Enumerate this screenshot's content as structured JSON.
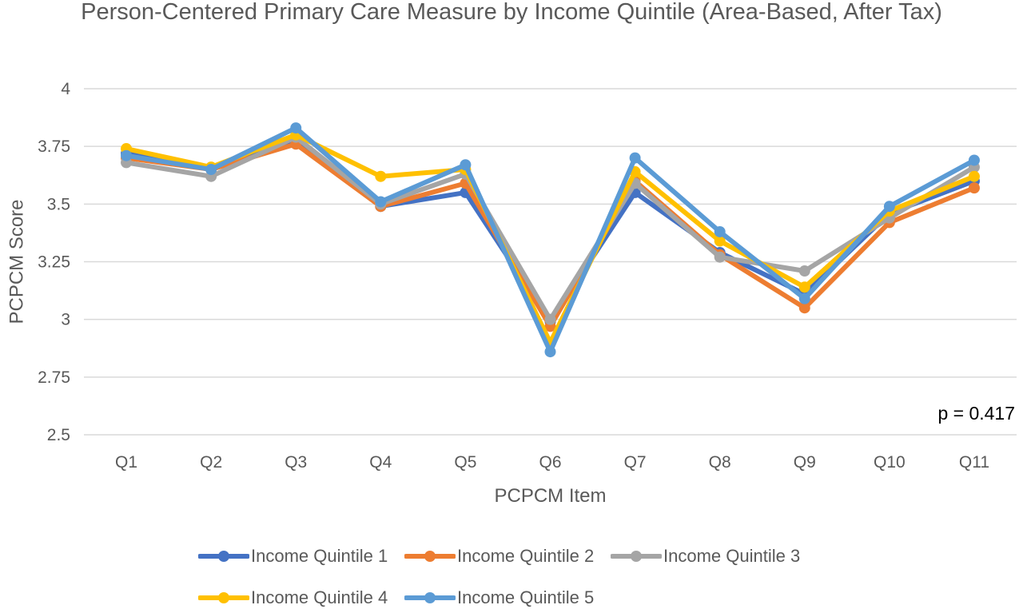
{
  "chart_data": {
    "type": "line",
    "title": "Person-Centered Primary Care Measure by Income Quintile (Area-Based, After Tax)",
    "xlabel": "PCPCM Item",
    "ylabel": "PCPCM Score",
    "categories": [
      "Q1",
      "Q2",
      "Q3",
      "Q4",
      "Q5",
      "Q6",
      "Q7",
      "Q8",
      "Q9",
      "Q10",
      "Q11"
    ],
    "ylim": [
      2.5,
      4
    ],
    "yticks": [
      "4",
      "3.75",
      "3.5",
      "3.25",
      "3",
      "2.75",
      "2.5"
    ],
    "ytick_values": [
      4,
      3.75,
      3.5,
      3.25,
      3,
      2.75,
      2.5
    ],
    "grid": "horizontal",
    "legend_position": "bottom",
    "annotation": "p = 0.417",
    "series": [
      {
        "name": "Income Quintile 1",
        "color": "#4472C4",
        "values": [
          3.72,
          3.65,
          3.77,
          3.49,
          3.55,
          2.99,
          3.55,
          3.29,
          3.11,
          3.46,
          3.6
        ]
      },
      {
        "name": "Income Quintile 2",
        "color": "#ED7D31",
        "values": [
          3.7,
          3.65,
          3.76,
          3.49,
          3.59,
          2.97,
          3.6,
          3.28,
          3.05,
          3.42,
          3.57
        ]
      },
      {
        "name": "Income Quintile 3",
        "color": "#A5A5A5",
        "values": [
          3.68,
          3.62,
          3.79,
          3.5,
          3.63,
          3.0,
          3.59,
          3.27,
          3.21,
          3.44,
          3.66
        ]
      },
      {
        "name": "Income Quintile 4",
        "color": "#FFC000",
        "values": [
          3.74,
          3.66,
          3.8,
          3.62,
          3.65,
          2.9,
          3.64,
          3.34,
          3.14,
          3.47,
          3.62
        ]
      },
      {
        "name": "Income Quintile 5",
        "color": "#5B9BD5",
        "values": [
          3.71,
          3.65,
          3.83,
          3.51,
          3.67,
          2.86,
          3.7,
          3.38,
          3.09,
          3.49,
          3.69
        ]
      }
    ]
  }
}
